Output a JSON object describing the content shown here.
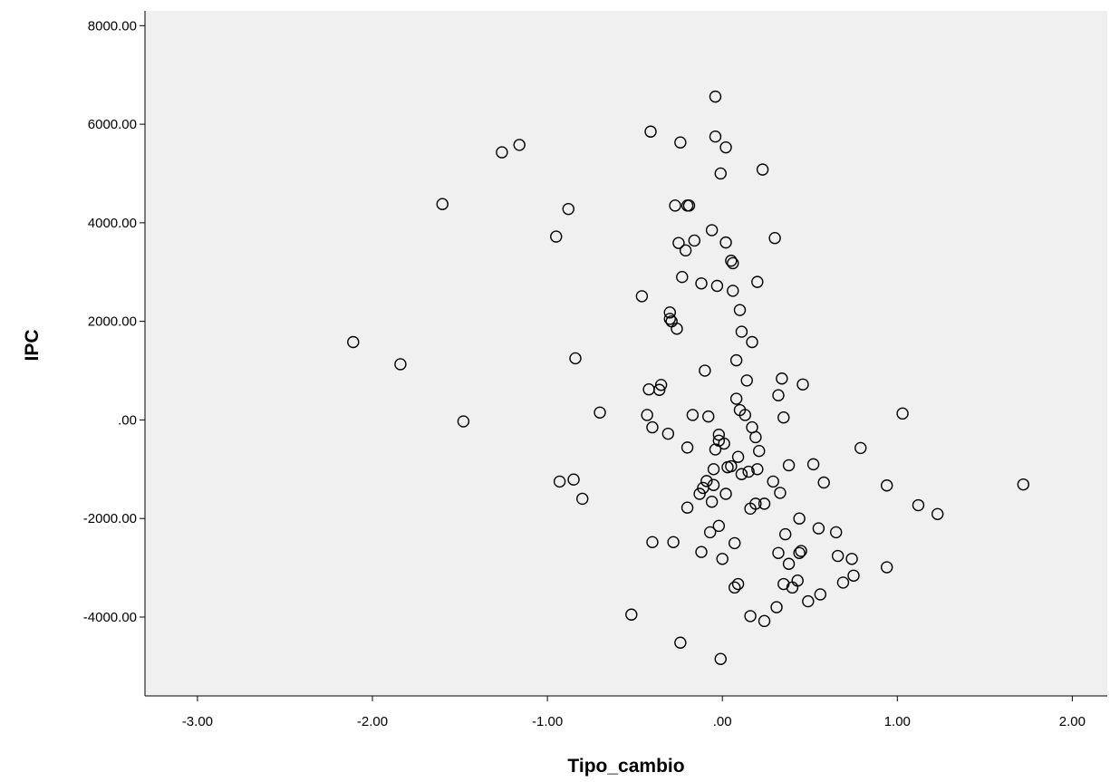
{
  "chart_data": {
    "type": "scatter",
    "title": "",
    "xlabel": "Tipo_cambio",
    "ylabel": "IPC",
    "xlim": [
      -3.3,
      2.2
    ],
    "ylim": [
      -5600,
      8300
    ],
    "x_ticks": [
      -3.0,
      -2.0,
      -1.0,
      0.0,
      1.0,
      2.0
    ],
    "x_tick_labels": [
      "-3.00",
      "-2.00",
      "-1.00",
      ".00",
      "1.00",
      "2.00"
    ],
    "y_ticks": [
      -4000,
      -2000,
      0,
      2000,
      4000,
      6000,
      8000
    ],
    "y_tick_labels": [
      "-4000.00",
      "-2000.00",
      ".00",
      "2000.00",
      "4000.00",
      "6000.00",
      "8000.00"
    ],
    "grid": false,
    "background_color": "#f0f0f0",
    "marker": "hollow-circle",
    "marker_color": "#000000",
    "series": [
      {
        "points": [
          [
            -2.11,
            1580
          ],
          [
            -1.84,
            1130
          ],
          [
            -1.6,
            4380
          ],
          [
            -1.48,
            -30
          ],
          [
            -1.26,
            5430
          ],
          [
            -1.16,
            5580
          ],
          [
            -0.95,
            3720
          ],
          [
            -0.93,
            -1250
          ],
          [
            -0.88,
            4280
          ],
          [
            -0.85,
            -1210
          ],
          [
            -0.84,
            1250
          ],
          [
            -0.8,
            -1600
          ],
          [
            -0.7,
            150
          ],
          [
            -0.52,
            -3950
          ],
          [
            -0.46,
            2510
          ],
          [
            -0.43,
            100
          ],
          [
            -0.42,
            620
          ],
          [
            -0.41,
            5850
          ],
          [
            -0.4,
            -2480
          ],
          [
            -0.4,
            -150
          ],
          [
            -0.36,
            610
          ],
          [
            -0.35,
            710
          ],
          [
            -0.31,
            -280
          ],
          [
            -0.3,
            2180
          ],
          [
            -0.3,
            2050
          ],
          [
            -0.29,
            2000
          ],
          [
            -0.28,
            -2480
          ],
          [
            -0.27,
            4350
          ],
          [
            -0.26,
            1850
          ],
          [
            -0.25,
            3590
          ],
          [
            -0.24,
            5630
          ],
          [
            -0.24,
            -4520
          ],
          [
            -0.23,
            2900
          ],
          [
            -0.21,
            3440
          ],
          [
            -0.2,
            4350
          ],
          [
            -0.2,
            -560
          ],
          [
            -0.2,
            -1780
          ],
          [
            -0.19,
            4350
          ],
          [
            -0.17,
            100
          ],
          [
            -0.16,
            3640
          ],
          [
            -0.13,
            -1500
          ],
          [
            -0.12,
            2770
          ],
          [
            -0.12,
            -2680
          ],
          [
            -0.11,
            -1380
          ],
          [
            -0.1,
            1000
          ],
          [
            -0.09,
            -1240
          ],
          [
            -0.08,
            70
          ],
          [
            -0.07,
            -2280
          ],
          [
            -0.06,
            -1660
          ],
          [
            -0.06,
            3850
          ],
          [
            -0.05,
            -1000
          ],
          [
            -0.05,
            -1320
          ],
          [
            -0.04,
            5750
          ],
          [
            -0.04,
            6560
          ],
          [
            -0.04,
            -600
          ],
          [
            -0.03,
            2720
          ],
          [
            -0.02,
            -300
          ],
          [
            -0.02,
            -420
          ],
          [
            -0.02,
            -2150
          ],
          [
            -0.01,
            5000
          ],
          [
            -0.01,
            -4850
          ],
          [
            0.0,
            -2820
          ],
          [
            0.01,
            -480
          ],
          [
            0.02,
            5530
          ],
          [
            0.02,
            -1500
          ],
          [
            0.02,
            3600
          ],
          [
            0.03,
            -960
          ],
          [
            0.05,
            -940
          ],
          [
            0.05,
            3230
          ],
          [
            0.06,
            2620
          ],
          [
            0.06,
            3180
          ],
          [
            0.07,
            -2500
          ],
          [
            0.07,
            -3400
          ],
          [
            0.08,
            1210
          ],
          [
            0.08,
            430
          ],
          [
            0.09,
            -3330
          ],
          [
            0.09,
            -750
          ],
          [
            0.1,
            2230
          ],
          [
            0.1,
            200
          ],
          [
            0.11,
            1790
          ],
          [
            0.11,
            -1100
          ],
          [
            0.13,
            100
          ],
          [
            0.14,
            800
          ],
          [
            0.15,
            -1050
          ],
          [
            0.16,
            -3980
          ],
          [
            0.16,
            -1800
          ],
          [
            0.17,
            -150
          ],
          [
            0.17,
            1580
          ],
          [
            0.19,
            -350
          ],
          [
            0.19,
            -1700
          ],
          [
            0.2,
            -1000
          ],
          [
            0.2,
            2800
          ],
          [
            0.21,
            -630
          ],
          [
            0.23,
            5080
          ],
          [
            0.24,
            -1700
          ],
          [
            0.24,
            -4080
          ],
          [
            0.29,
            -1250
          ],
          [
            0.3,
            3690
          ],
          [
            0.31,
            -3800
          ],
          [
            0.32,
            -2700
          ],
          [
            0.32,
            500
          ],
          [
            0.33,
            -1480
          ],
          [
            0.34,
            840
          ],
          [
            0.35,
            -3330
          ],
          [
            0.35,
            50
          ],
          [
            0.36,
            -2320
          ],
          [
            0.38,
            -920
          ],
          [
            0.38,
            -2920
          ],
          [
            0.4,
            -3400
          ],
          [
            0.43,
            -3260
          ],
          [
            0.44,
            -2000
          ],
          [
            0.44,
            -2700
          ],
          [
            0.45,
            -2660
          ],
          [
            0.46,
            720
          ],
          [
            0.49,
            -3680
          ],
          [
            0.52,
            -900
          ],
          [
            0.55,
            -2200
          ],
          [
            0.56,
            -3540
          ],
          [
            0.58,
            -1270
          ],
          [
            0.65,
            -2280
          ],
          [
            0.66,
            -2760
          ],
          [
            0.69,
            -3300
          ],
          [
            0.74,
            -2820
          ],
          [
            0.75,
            -3160
          ],
          [
            0.79,
            -570
          ],
          [
            0.94,
            -1330
          ],
          [
            0.94,
            -2990
          ],
          [
            1.03,
            130
          ],
          [
            1.12,
            -1730
          ],
          [
            1.23,
            -1910
          ],
          [
            1.72,
            -1310
          ]
        ]
      }
    ]
  }
}
